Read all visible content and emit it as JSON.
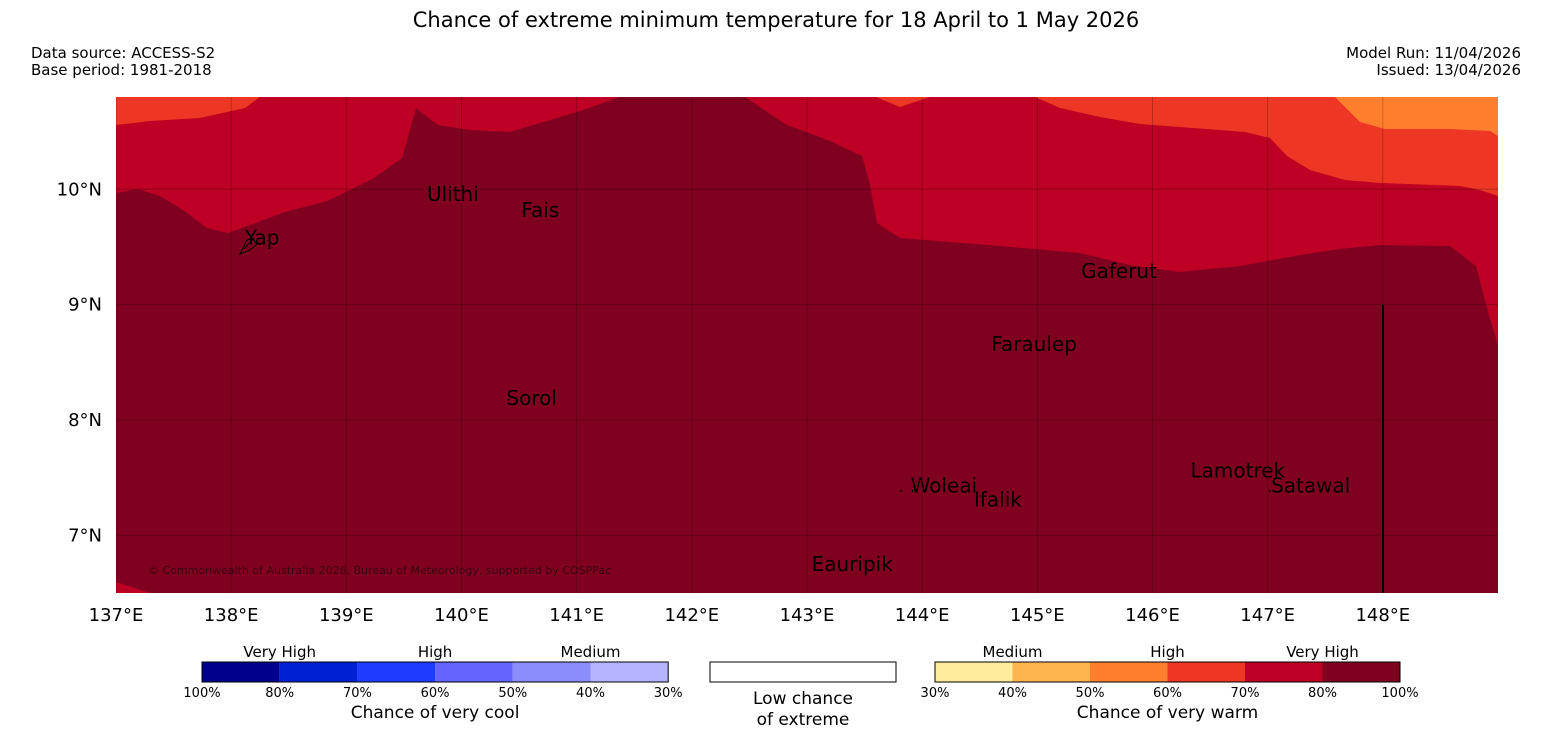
{
  "title": "Chance of extreme minimum temperature for 18 April to 1 May 2026",
  "data_source": "Data source: ACCESS-S2",
  "base_period": "Base period: 1981-2018",
  "model_run": "Model Run: 11/04/2026",
  "issued": "Issued: 13/04/2026",
  "copyright": "© Commonwealth of Australia 2026, Bureau of Meteorology, supported by COSPPac",
  "map": {
    "lon_range": [
      137.0,
      149.0
    ],
    "lat_range": [
      6.5,
      10.8
    ],
    "lon_ticks": [
      {
        "value": 137,
        "label": "137°E"
      },
      {
        "value": 138,
        "label": "138°E"
      },
      {
        "value": 139,
        "label": "139°E"
      },
      {
        "value": 140,
        "label": "140°E"
      },
      {
        "value": 141,
        "label": "141°E"
      },
      {
        "value": 142,
        "label": "142°E"
      },
      {
        "value": 143,
        "label": "143°E"
      },
      {
        "value": 144,
        "label": "144°E"
      },
      {
        "value": 145,
        "label": "145°E"
      },
      {
        "value": 146,
        "label": "146°E"
      },
      {
        "value": 147,
        "label": "147°E"
      },
      {
        "value": 148,
        "label": "148°E"
      }
    ],
    "lat_ticks": [
      {
        "value": 10,
        "label": "10°N"
      },
      {
        "value": 9,
        "label": "9°N"
      },
      {
        "value": 8,
        "label": "8°N"
      },
      {
        "value": 7,
        "label": "7°N"
      }
    ],
    "places": [
      {
        "name": "Yap",
        "lon": 138.12,
        "lat": 9.52
      },
      {
        "name": "Ulithi",
        "lon": 139.7,
        "lat": 9.9
      },
      {
        "name": "Fais",
        "lon": 140.52,
        "lat": 9.76
      },
      {
        "name": "Sorol",
        "lon": 140.39,
        "lat": 8.13
      },
      {
        "name": "Gaferut",
        "lon": 145.38,
        "lat": 9.23
      },
      {
        "name": "Faraulep",
        "lon": 144.6,
        "lat": 8.6
      },
      {
        "name": "Woleai",
        "lon": 143.9,
        "lat": 7.37
      },
      {
        "name": "Ifalik",
        "lon": 144.45,
        "lat": 7.25
      },
      {
        "name": "Lamotrek",
        "lon": 146.33,
        "lat": 7.5
      },
      {
        "name": "Satawal",
        "lon": 147.03,
        "lat": 7.37
      },
      {
        "name": "Eauripik",
        "lon": 143.04,
        "lat": 6.69
      }
    ],
    "colors": {
      "very_high_warm": "#800020",
      "high_warm_70": "#bd0023",
      "high_warm_60": "#ee3624",
      "medium_warm_50": "#ff7f2e",
      "grid": "#000000"
    }
  },
  "legend": {
    "cool": {
      "categories": [
        "Very High",
        "High",
        "Medium"
      ],
      "ticks": [
        "100%",
        "80%",
        "70%",
        "60%",
        "50%",
        "40%",
        "30%"
      ],
      "colors": [
        "#00008c",
        "#0020d4",
        "#1e3cff",
        "#6464ff",
        "#8c8cff",
        "#b4b4ff"
      ],
      "caption": "Chance of very cool"
    },
    "neutral": {
      "caption_line1": "Low chance",
      "caption_line2": "of extreme"
    },
    "warm": {
      "categories": [
        "Medium",
        "High",
        "Very High"
      ],
      "ticks": [
        "30%",
        "40%",
        "50%",
        "60%",
        "70%",
        "80%",
        "100%"
      ],
      "colors": [
        "#ffec9c",
        "#ffb44f",
        "#ff7f2e",
        "#ee3624",
        "#bd0023",
        "#800020"
      ],
      "caption": "Chance of very warm"
    }
  }
}
